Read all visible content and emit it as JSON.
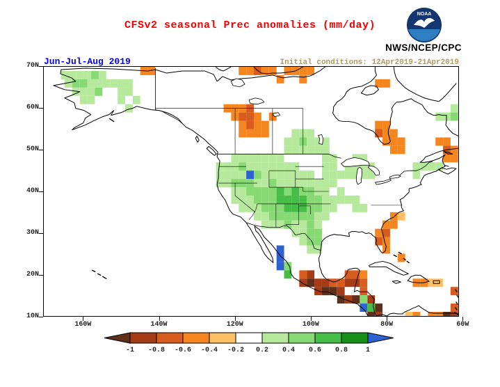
{
  "header": {
    "title": "CFSv2 seasonal Prec anomalies (mm/day)",
    "title_color": "#f40000",
    "agency": "NWS/NCEP/CPC",
    "logo_text": "NOAA"
  },
  "subheader": {
    "season": "Jun-Jul-Aug 2019",
    "season_color": "#0000ee",
    "initial_conditions": "Initial conditions: 12Apr2019-21Apr2019",
    "conditions_color": "#b19a62"
  },
  "map": {
    "lat_labels": [
      "70N",
      "60N",
      "50N",
      "40N",
      "30N",
      "20N",
      "10N"
    ],
    "lon_labels": [
      "160W",
      "140W",
      "120W",
      "100W",
      "80W",
      "60W"
    ]
  },
  "colorbar": {
    "ticks": [
      "-1",
      "-0.8",
      "-0.6",
      "-0.4",
      "-0.2",
      "0.2",
      "0.4",
      "0.6",
      "0.8",
      "1"
    ],
    "colors": [
      "#5e2f1a",
      "#a63c16",
      "#d85c1e",
      "#f5861f",
      "#fdc064",
      "#ffffff",
      "#b6e99c",
      "#86d973",
      "#46bd46",
      "#169016",
      "#2e62d0"
    ]
  },
  "chart_data": {
    "type": "heatmap",
    "title": "CFSv2 seasonal Prec anomalies (mm/day)",
    "units": "mm/day",
    "season": "Jun-Jul-Aug 2019",
    "initial_conditions": "12Apr2019-21Apr2019",
    "lat_range_N": [
      10,
      70
    ],
    "lon_range_W": [
      61,
      170
    ],
    "scale_levels": [
      -1,
      -0.8,
      -0.6,
      -0.4,
      -0.2,
      0.2,
      0.4,
      0.6,
      0.8,
      1
    ],
    "cell_color_note": "cells are [lonW, latN, index into colorbar.colors]; 0 means < -1 mm/day, 10 means > 1 mm/day",
    "cells": [
      [
        165,
        68,
        6
      ],
      [
        163,
        68,
        6
      ],
      [
        161,
        68,
        6
      ],
      [
        159,
        68,
        6
      ],
      [
        157,
        68,
        7
      ],
      [
        155,
        68,
        6
      ],
      [
        164,
        66,
        6
      ],
      [
        162,
        66,
        7
      ],
      [
        160,
        66,
        7
      ],
      [
        158,
        66,
        6
      ],
      [
        156,
        66,
        6
      ],
      [
        154,
        66,
        6
      ],
      [
        152,
        66,
        6
      ],
      [
        150,
        66,
        6
      ],
      [
        148,
        66,
        6
      ],
      [
        162,
        64,
        6
      ],
      [
        160,
        64,
        6
      ],
      [
        158,
        64,
        6
      ],
      [
        156,
        64,
        7
      ],
      [
        150,
        64,
        6
      ],
      [
        148,
        64,
        6
      ],
      [
        160,
        62,
        6
      ],
      [
        158,
        62,
        6
      ],
      [
        150,
        62,
        6
      ],
      [
        146,
        62,
        6
      ],
      [
        148,
        60,
        6
      ],
      [
        144,
        69,
        3
      ],
      [
        142,
        69,
        3
      ],
      [
        118,
        69,
        3
      ],
      [
        116,
        69,
        3
      ],
      [
        114,
        69,
        2
      ],
      [
        112,
        69,
        3
      ],
      [
        110,
        69,
        3
      ],
      [
        106,
        69,
        3
      ],
      [
        104,
        69,
        3
      ],
      [
        102,
        69,
        3
      ],
      [
        100,
        69,
        3
      ],
      [
        108,
        67,
        3
      ],
      [
        102,
        67,
        3
      ],
      [
        82,
        66,
        3
      ],
      [
        80,
        66,
        3
      ],
      [
        122,
        60,
        3
      ],
      [
        120,
        60,
        3
      ],
      [
        118,
        60,
        3
      ],
      [
        116,
        60,
        2
      ],
      [
        120,
        58,
        3
      ],
      [
        118,
        58,
        2
      ],
      [
        116,
        58,
        2
      ],
      [
        114,
        58,
        3
      ],
      [
        110,
        58,
        3
      ],
      [
        118,
        56,
        3
      ],
      [
        116,
        56,
        2
      ],
      [
        114,
        56,
        3
      ],
      [
        112,
        56,
        3
      ],
      [
        118,
        54,
        3
      ],
      [
        116,
        54,
        3
      ],
      [
        114,
        54,
        3
      ],
      [
        112,
        54,
        3
      ],
      [
        106,
        52,
        6
      ],
      [
        104,
        52,
        6
      ],
      [
        102,
        52,
        7
      ],
      [
        100,
        52,
        6
      ],
      [
        98,
        52,
        6
      ],
      [
        104,
        54,
        6
      ],
      [
        102,
        54,
        6
      ],
      [
        100,
        54,
        6
      ],
      [
        96,
        52,
        6
      ],
      [
        106,
        50,
        6
      ],
      [
        104,
        50,
        6
      ],
      [
        102,
        50,
        6
      ],
      [
        100,
        50,
        6
      ],
      [
        98,
        50,
        6
      ],
      [
        96,
        50,
        6
      ],
      [
        82,
        56,
        3
      ],
      [
        80,
        56,
        3
      ],
      [
        82,
        54,
        2
      ],
      [
        80,
        54,
        3
      ],
      [
        78,
        54,
        3
      ],
      [
        80,
        52,
        3
      ],
      [
        78,
        52,
        3
      ],
      [
        76,
        52,
        3
      ],
      [
        78,
        50,
        3
      ],
      [
        76,
        50,
        3
      ],
      [
        66,
        52,
        3
      ],
      [
        64,
        52,
        3
      ],
      [
        64,
        50,
        2
      ],
      [
        62,
        50,
        3
      ],
      [
        64,
        48,
        3
      ],
      [
        62,
        48,
        3
      ],
      [
        66,
        58,
        6
      ],
      [
        64,
        58,
        6
      ],
      [
        62,
        58,
        7
      ],
      [
        60,
        58,
        6
      ],
      [
        62,
        60,
        6
      ],
      [
        60,
        60,
        6
      ],
      [
        72,
        46,
        6
      ],
      [
        70,
        46,
        6
      ],
      [
        68,
        46,
        6
      ],
      [
        66,
        46,
        6
      ],
      [
        88,
        48,
        6
      ],
      [
        86,
        48,
        6
      ],
      [
        90,
        46,
        6
      ],
      [
        88,
        46,
        6
      ],
      [
        86,
        46,
        6
      ],
      [
        84,
        46,
        6
      ],
      [
        90,
        44,
        6
      ],
      [
        88,
        44,
        6
      ],
      [
        86,
        44,
        6
      ],
      [
        84,
        44,
        6
      ],
      [
        120,
        48,
        6
      ],
      [
        118,
        48,
        6
      ],
      [
        116,
        48,
        6
      ],
      [
        114,
        48,
        6
      ],
      [
        112,
        48,
        6
      ],
      [
        110,
        48,
        6
      ],
      [
        108,
        48,
        6
      ],
      [
        96,
        48,
        6
      ],
      [
        94,
        48,
        6
      ],
      [
        124,
        46,
        6
      ],
      [
        122,
        46,
        6
      ],
      [
        120,
        46,
        6
      ],
      [
        118,
        46,
        7
      ],
      [
        116,
        46,
        6
      ],
      [
        114,
        46,
        6
      ],
      [
        112,
        46,
        6
      ],
      [
        110,
        46,
        6
      ],
      [
        108,
        46,
        6
      ],
      [
        106,
        46,
        6
      ],
      [
        104,
        46,
        6
      ],
      [
        96,
        46,
        6
      ],
      [
        94,
        46,
        6
      ],
      [
        124,
        44,
        6
      ],
      [
        122,
        44,
        6
      ],
      [
        120,
        44,
        6
      ],
      [
        118,
        44,
        6
      ],
      [
        116,
        44,
        10
      ],
      [
        114,
        44,
        7
      ],
      [
        112,
        44,
        6
      ],
      [
        110,
        44,
        6
      ],
      [
        108,
        44,
        6
      ],
      [
        106,
        44,
        6
      ],
      [
        104,
        44,
        6
      ],
      [
        102,
        44,
        6
      ],
      [
        100,
        44,
        6
      ],
      [
        96,
        44,
        6
      ],
      [
        94,
        44,
        6
      ],
      [
        92,
        44,
        6
      ],
      [
        124,
        42,
        6
      ],
      [
        122,
        42,
        6
      ],
      [
        120,
        42,
        7
      ],
      [
        118,
        42,
        7
      ],
      [
        116,
        42,
        7
      ],
      [
        114,
        42,
        6
      ],
      [
        112,
        42,
        6
      ],
      [
        110,
        42,
        7
      ],
      [
        108,
        42,
        6
      ],
      [
        106,
        42,
        6
      ],
      [
        104,
        42,
        6
      ],
      [
        102,
        42,
        6
      ],
      [
        100,
        42,
        6
      ],
      [
        98,
        42,
        6
      ],
      [
        96,
        42,
        6
      ],
      [
        94,
        42,
        6
      ],
      [
        120,
        40,
        6
      ],
      [
        118,
        40,
        6
      ],
      [
        116,
        40,
        7
      ],
      [
        114,
        40,
        7
      ],
      [
        112,
        40,
        7
      ],
      [
        110,
        40,
        7
      ],
      [
        108,
        40,
        8
      ],
      [
        106,
        40,
        7
      ],
      [
        104,
        40,
        8
      ],
      [
        102,
        40,
        7
      ],
      [
        100,
        40,
        7
      ],
      [
        98,
        40,
        6
      ],
      [
        96,
        40,
        6
      ],
      [
        92,
        40,
        6
      ],
      [
        120,
        38,
        6
      ],
      [
        118,
        38,
        6
      ],
      [
        116,
        38,
        6
      ],
      [
        114,
        38,
        7
      ],
      [
        112,
        38,
        7
      ],
      [
        110,
        38,
        7
      ],
      [
        108,
        38,
        8
      ],
      [
        106,
        38,
        8
      ],
      [
        104,
        38,
        8
      ],
      [
        102,
        38,
        8
      ],
      [
        100,
        38,
        7
      ],
      [
        98,
        38,
        7
      ],
      [
        96,
        38,
        6
      ],
      [
        94,
        38,
        6
      ],
      [
        92,
        38,
        6
      ],
      [
        90,
        38,
        6
      ],
      [
        88,
        38,
        6
      ],
      [
        118,
        36,
        6
      ],
      [
        116,
        36,
        6
      ],
      [
        114,
        36,
        6
      ],
      [
        112,
        36,
        7
      ],
      [
        110,
        36,
        7
      ],
      [
        108,
        36,
        7
      ],
      [
        106,
        36,
        8
      ],
      [
        104,
        36,
        8
      ],
      [
        102,
        36,
        8
      ],
      [
        100,
        36,
        7
      ],
      [
        98,
        36,
        7
      ],
      [
        96,
        36,
        6
      ],
      [
        94,
        36,
        6
      ],
      [
        88,
        36,
        6
      ],
      [
        86,
        36,
        6
      ],
      [
        114,
        34,
        6
      ],
      [
        112,
        34,
        6
      ],
      [
        110,
        34,
        7
      ],
      [
        108,
        34,
        7
      ],
      [
        106,
        34,
        7
      ],
      [
        104,
        34,
        7
      ],
      [
        102,
        34,
        7
      ],
      [
        100,
        34,
        7
      ],
      [
        98,
        34,
        6
      ],
      [
        96,
        34,
        6
      ],
      [
        112,
        32,
        6
      ],
      [
        110,
        32,
        6
      ],
      [
        108,
        32,
        6
      ],
      [
        106,
        32,
        7
      ],
      [
        104,
        32,
        6
      ],
      [
        102,
        32,
        6
      ],
      [
        100,
        32,
        7
      ],
      [
        98,
        32,
        6
      ],
      [
        104,
        30,
        6
      ],
      [
        102,
        30,
        6
      ],
      [
        100,
        30,
        7
      ],
      [
        98,
        30,
        7
      ],
      [
        102,
        28,
        6
      ],
      [
        100,
        28,
        7
      ],
      [
        98,
        28,
        7
      ],
      [
        100,
        26,
        6
      ],
      [
        98,
        26,
        6
      ],
      [
        72,
        44,
        6
      ],
      [
        82,
        30,
        3
      ],
      [
        80,
        30,
        2
      ],
      [
        82,
        28,
        2
      ],
      [
        80,
        28,
        3
      ],
      [
        80,
        26,
        3
      ],
      [
        80,
        32,
        3
      ],
      [
        78,
        32,
        3
      ],
      [
        78,
        34,
        3
      ],
      [
        76,
        34,
        4
      ],
      [
        76,
        24,
        3
      ],
      [
        108,
        26,
        10
      ],
      [
        108,
        24,
        10
      ],
      [
        108,
        22,
        10
      ],
      [
        106,
        22,
        7
      ],
      [
        106,
        20,
        8
      ],
      [
        102,
        20,
        2
      ],
      [
        100,
        20,
        1
      ],
      [
        102,
        18,
        1
      ],
      [
        100,
        18,
        0
      ],
      [
        98,
        18,
        1
      ],
      [
        96,
        18,
        1
      ],
      [
        94,
        18,
        2
      ],
      [
        92,
        18,
        2
      ],
      [
        98,
        16,
        1
      ],
      [
        96,
        16,
        0
      ],
      [
        94,
        16,
        0
      ],
      [
        92,
        16,
        1
      ],
      [
        90,
        20,
        2
      ],
      [
        88,
        20,
        2
      ],
      [
        90,
        18,
        1
      ],
      [
        88,
        18,
        1
      ],
      [
        86,
        20,
        3
      ],
      [
        86,
        18,
        2
      ],
      [
        92,
        14,
        0
      ],
      [
        90,
        14,
        1
      ],
      [
        88,
        14,
        0
      ],
      [
        86,
        16,
        2
      ],
      [
        84,
        14,
        1
      ],
      [
        86,
        14,
        7
      ],
      [
        86,
        12,
        10
      ],
      [
        84,
        12,
        8
      ],
      [
        84,
        10,
        0
      ],
      [
        82,
        10,
        1
      ],
      [
        82,
        12,
        0
      ],
      [
        72,
        18,
        3
      ],
      [
        70,
        18,
        3
      ],
      [
        68,
        18,
        4
      ],
      [
        66,
        18,
        4
      ],
      [
        62,
        16,
        2
      ],
      [
        64,
        10,
        0
      ],
      [
        62,
        10,
        1
      ],
      [
        62,
        12,
        2
      ],
      [
        68,
        10,
        3
      ],
      [
        60,
        10,
        0
      ],
      [
        66,
        10,
        3
      ],
      [
        74,
        10,
        4
      ],
      [
        72,
        10,
        3
      ]
    ]
  }
}
